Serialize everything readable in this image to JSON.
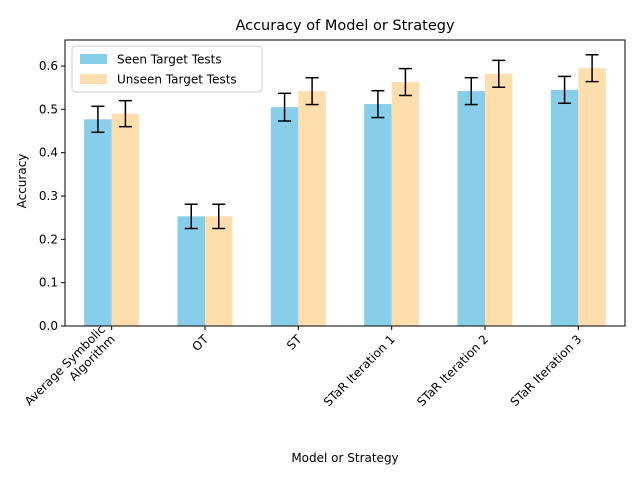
{
  "chart_data": {
    "type": "bar",
    "title": "Accuracy of Model or Strategy",
    "xlabel": "Model or Strategy",
    "ylabel": "Accuracy",
    "ylim": [
      0,
      0.66
    ],
    "yticks": [
      0.0,
      0.1,
      0.2,
      0.3,
      0.4,
      0.5,
      0.6
    ],
    "ytick_labels": [
      "0.0",
      "0.1",
      "0.2",
      "0.3",
      "0.4",
      "0.5",
      "0.6"
    ],
    "categories": [
      "Average Symbolic\nAlgorithm",
      "OT",
      "ST",
      "STaR Iteration 1",
      "STaR Iteration 2",
      "STaR Iteration 3"
    ],
    "series": [
      {
        "name": "Seen Target Tests",
        "color": "#87ceeb",
        "values": [
          0.477,
          0.253,
          0.505,
          0.512,
          0.542,
          0.545
        ],
        "error": [
          0.03,
          0.028,
          0.032,
          0.031,
          0.031,
          0.031
        ]
      },
      {
        "name": "Unseen Target Tests",
        "color": "#ffdead",
        "values": [
          0.49,
          0.253,
          0.542,
          0.563,
          0.582,
          0.595
        ],
        "error": [
          0.03,
          0.028,
          0.031,
          0.031,
          0.031,
          0.031
        ]
      }
    ],
    "grid": false,
    "legend_position": "top-left",
    "errorbar_color": "#000000"
  }
}
